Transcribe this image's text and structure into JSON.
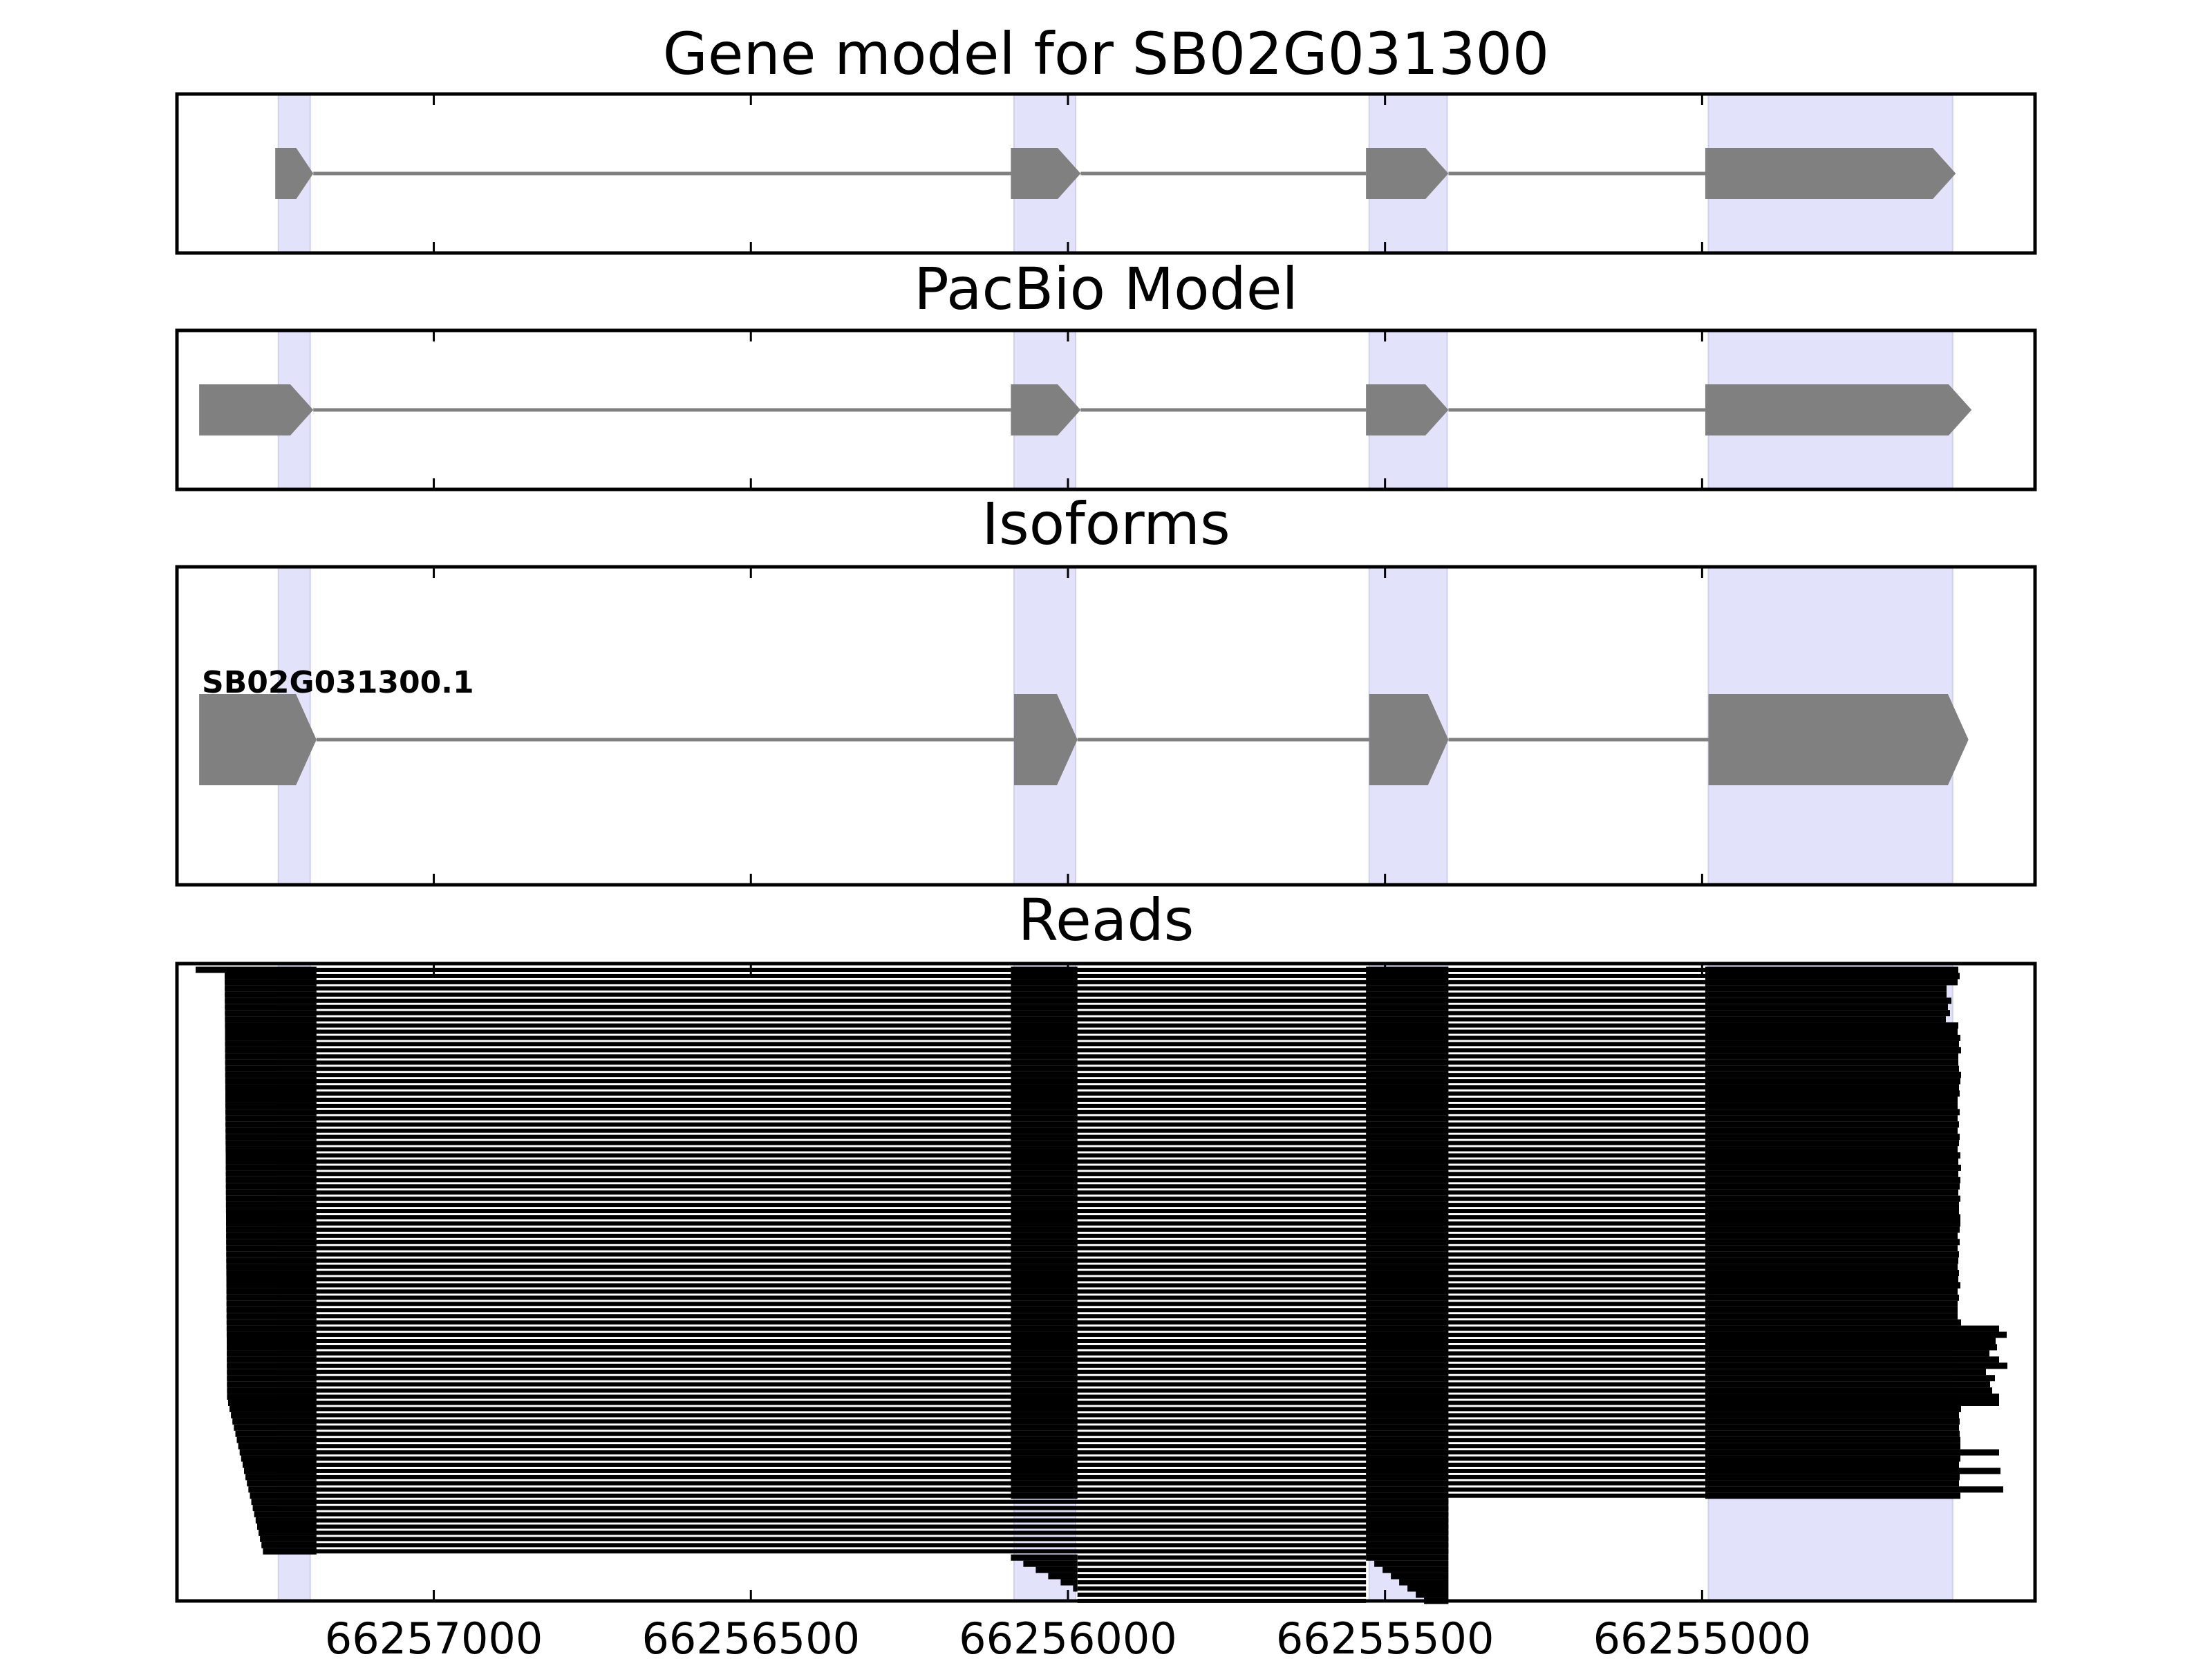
{
  "panels": [
    {
      "id": "gene",
      "title": "Gene model for SB02G031300",
      "isoform_label": ""
    },
    {
      "id": "pacbio",
      "title": "PacBio Model",
      "isoform_label": ""
    },
    {
      "id": "isoforms",
      "title": "Isoforms",
      "isoform_label": "SB02G031300.1"
    },
    {
      "id": "reads",
      "title": "Reads",
      "isoform_label": ""
    }
  ],
  "axis": {
    "direction": "descending",
    "xlim": [
      66257405,
      66254475
    ],
    "ticks": [
      66257000,
      66256500,
      66256000,
      66255500,
      66255000
    ],
    "tick_labels": [
      "66257000",
      "66256500",
      "66256000",
      "66255500",
      "66255000"
    ]
  },
  "colors": {
    "exon": "#808080",
    "intron": "#808080",
    "highlight": "#e2e2fb",
    "read": "#000000",
    "frame": "#000000"
  },
  "chart_data": {
    "type": "gene-structure",
    "strand": "minus",
    "exon_highlights": [
      [
        66257245,
        66257195
      ],
      [
        66256085,
        66255988
      ],
      [
        66255525,
        66255402
      ],
      [
        66254990,
        66254605
      ]
    ],
    "gene_model": {
      "name": "SB02G031300",
      "exons": [
        [
          66257250,
          66257190
        ],
        [
          66256090,
          66255980
        ],
        [
          66255530,
          66255400
        ],
        [
          66254995,
          66254600
        ]
      ]
    },
    "pacbio_model": {
      "exons": [
        [
          66257370,
          66257190
        ],
        [
          66256090,
          66255980
        ],
        [
          66255530,
          66255400
        ],
        [
          66254995,
          66254575
        ]
      ]
    },
    "isoforms": [
      {
        "name": "SB02G031300.1",
        "exons": [
          [
            66257370,
            66257185
          ],
          [
            66256085,
            66255985
          ],
          [
            66255525,
            66255400
          ],
          [
            66254990,
            66254580
          ]
        ]
      }
    ],
    "reads": {
      "count": 95,
      "exon_boundaries": [
        [
          66257185
        ],
        [
          66256090,
          66255985
        ],
        [
          66255530,
          66255400
        ],
        [
          66254995
        ]
      ],
      "approx_5prime_start_range": [
        66257390,
        66257305
      ],
      "approx_3prime_end_range": [
        66254660,
        66254575
      ]
    }
  }
}
